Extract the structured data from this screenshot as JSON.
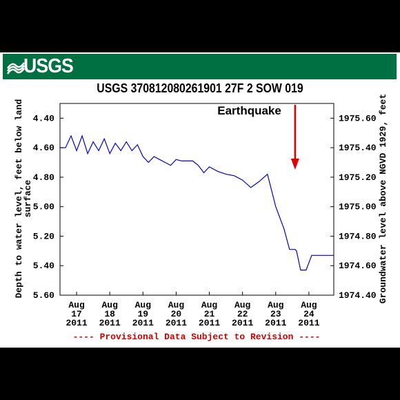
{
  "header": {
    "logo_text": "USGS",
    "title": "USGS 370812080261901 27F  2 SOW 019"
  },
  "chart_data": {
    "type": "line",
    "title": "USGS 370812080261901 27F  2 SOW 019",
    "ylabel_left": [
      "Depth to water level, feet below land",
      "surface"
    ],
    "ylabel_right": "Groundwater level above NGVD 1929, feet",
    "ylim_left": [
      5.6,
      4.3
    ],
    "ylim_right": [
      1974.4,
      1975.7
    ],
    "left_ticks": [
      "4.40",
      "4.60",
      "4.80",
      "5.00",
      "5.20",
      "5.40",
      "5.60"
    ],
    "right_ticks": [
      "1975.60",
      "1975.40",
      "1975.20",
      "1975.00",
      "1974.80",
      "1974.60",
      "1974.40"
    ],
    "x_ticks": [
      [
        "Aug",
        "17",
        "2011"
      ],
      [
        "Aug",
        "18",
        "2011"
      ],
      [
        "Aug",
        "19",
        "2011"
      ],
      [
        "Aug",
        "20",
        "2011"
      ],
      [
        "Aug",
        "21",
        "2011"
      ],
      [
        "Aug",
        "22",
        "2011"
      ],
      [
        "Aug",
        "23",
        "2011"
      ],
      [
        "Aug",
        "24",
        "2011"
      ]
    ],
    "xlim": [
      "2011-08-16 12:00",
      "2011-08-24 18:00"
    ],
    "annotation": "Earthquake",
    "annotation_x": "2011-08-23 14:00",
    "footnote": "---- Provisional Data Subject to Revision ----",
    "line_color": "#0000cc",
    "arrow_color": "#e00000",
    "footnote_color": "#d00000",
    "series": [
      {
        "x": [
          "2011-08-16 12:00",
          "2011-08-16 16:00",
          "2011-08-16 20:00",
          "2011-08-17 00:00",
          "2011-08-17 04:00",
          "2011-08-17 08:00",
          "2011-08-17 12:00",
          "2011-08-17 16:00",
          "2011-08-17 20:00",
          "2011-08-18 00:00",
          "2011-08-18 04:00",
          "2011-08-18 08:00",
          "2011-08-18 12:00",
          "2011-08-18 16:00",
          "2011-08-18 20:00",
          "2011-08-19 00:00",
          "2011-08-19 04:00",
          "2011-08-19 08:00",
          "2011-08-19 12:00",
          "2011-08-19 16:00",
          "2011-08-19 20:00",
          "2011-08-20 00:00",
          "2011-08-20 04:00",
          "2011-08-20 08:00",
          "2011-08-20 12:00",
          "2011-08-20 16:00",
          "2011-08-20 20:00",
          "2011-08-21 00:00",
          "2011-08-21 06:00",
          "2011-08-21 12:00",
          "2011-08-21 18:00",
          "2011-08-22 00:00",
          "2011-08-22 06:00",
          "2011-08-22 12:00",
          "2011-08-22 18:00",
          "2011-08-23 00:00",
          "2011-08-23 06:00",
          "2011-08-23 10:00",
          "2011-08-23 14:00",
          "2011-08-23 15:00",
          "2011-08-23 18:00",
          "2011-08-23 22:00",
          "2011-08-24 02:00",
          "2011-08-24 06:00",
          "2011-08-24 08:00",
          "2011-08-24 12:00",
          "2011-08-24 18:00"
        ],
        "y": [
          4.6,
          4.6,
          4.52,
          4.62,
          4.52,
          4.64,
          4.56,
          4.62,
          4.54,
          4.64,
          4.57,
          4.62,
          4.56,
          4.62,
          4.58,
          4.66,
          4.7,
          4.66,
          4.68,
          4.7,
          4.72,
          4.68,
          4.69,
          4.69,
          4.69,
          4.72,
          4.77,
          4.73,
          4.76,
          4.78,
          4.79,
          4.82,
          4.87,
          4.83,
          4.78,
          5.0,
          5.15,
          5.29,
          5.29,
          5.3,
          5.43,
          5.43,
          5.33,
          5.33,
          5.33,
          5.33,
          5.33
        ]
      }
    ]
  }
}
